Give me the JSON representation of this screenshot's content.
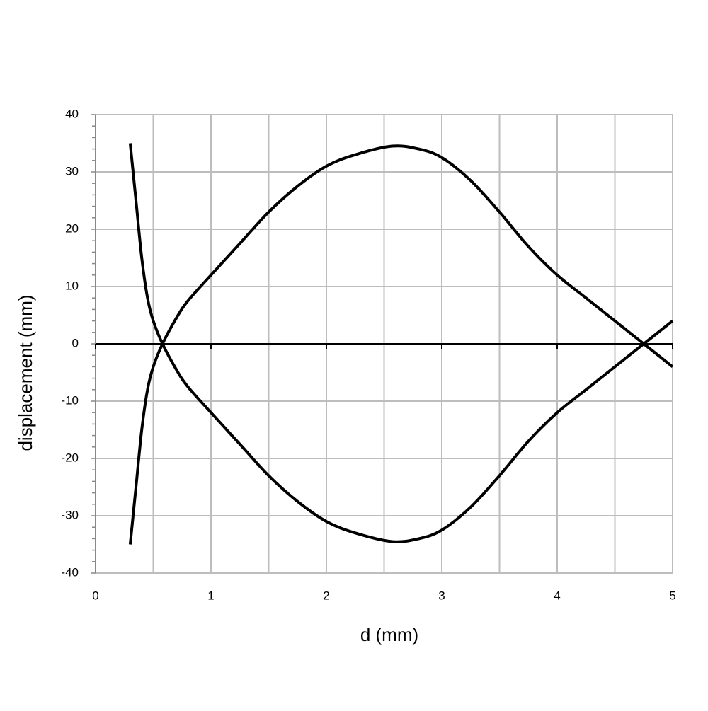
{
  "chart_data": {
    "type": "line",
    "xlabel": "d (mm)",
    "ylabel": "displacement (mm)",
    "x": [
      0.3,
      0.35,
      0.4,
      0.45,
      0.5,
      0.58,
      0.7,
      0.8,
      1,
      1.25,
      1.5,
      1.75,
      2,
      2.25,
      2.57,
      2.8,
      3,
      3.25,
      3.5,
      3.75,
      4,
      4.25,
      4.5,
      4.75,
      5
    ],
    "series": [
      {
        "color": "#000000",
        "values": [
          35,
          25,
          15,
          8,
          4,
          0,
          -4.5,
          -7.5,
          -12,
          -17.5,
          -23,
          -27.5,
          -31,
          -33,
          -34.5,
          -34,
          -32.5,
          -28.5,
          -23,
          -17,
          -12,
          -8,
          -4,
          0,
          4
        ]
      },
      {
        "color": "#000000",
        "values": [
          -35,
          -25,
          -15,
          -8,
          -4,
          0,
          4.5,
          7.5,
          12,
          17.5,
          23,
          27.5,
          31,
          33,
          34.5,
          34,
          32.5,
          28.5,
          23,
          17,
          12,
          8,
          4,
          0,
          -4
        ]
      }
    ],
    "xlim": [
      0,
      5
    ],
    "xticks": [
      0,
      1,
      2,
      3,
      4,
      5
    ],
    "ylim": [
      -40,
      40
    ],
    "yticks": [
      -40,
      -30,
      -20,
      -10,
      0,
      10,
      20,
      30,
      40
    ],
    "grid": true
  }
}
